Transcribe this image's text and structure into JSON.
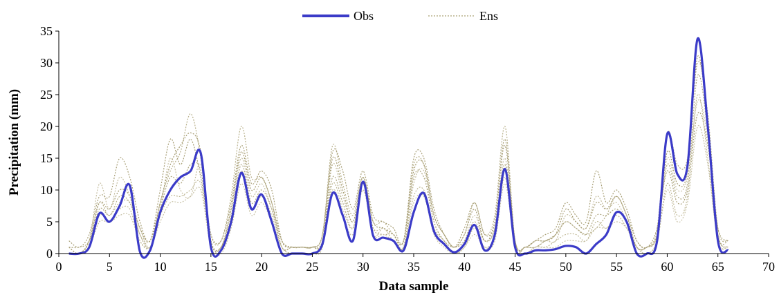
{
  "chart_data": {
    "type": "line",
    "xlabel": "Data sample",
    "ylabel": "Precipitation (mm)",
    "xlim": [
      0,
      70
    ],
    "ylim": [
      0,
      35
    ],
    "xticks": [
      0,
      5,
      10,
      15,
      20,
      25,
      30,
      35,
      40,
      45,
      50,
      55,
      60,
      65,
      70
    ],
    "yticks": [
      0,
      5,
      10,
      15,
      20,
      25,
      30,
      35
    ],
    "grid": false,
    "legend_position": "top-center",
    "colors": {
      "obs": "#3b3bc8",
      "ens": "#b8b08a"
    },
    "legend": [
      {
        "label": "Obs",
        "style": "solid",
        "color": "#3b3bc8"
      },
      {
        "label": "Ens",
        "style": "dotted",
        "color": "#b8b08a"
      }
    ],
    "x": [
      1,
      2,
      3,
      4,
      5,
      6,
      7,
      8,
      9,
      10,
      11,
      12,
      13,
      14,
      15,
      16,
      17,
      18,
      19,
      20,
      21,
      22,
      23,
      24,
      25,
      26,
      27,
      28,
      29,
      30,
      31,
      32,
      33,
      34,
      35,
      36,
      37,
      38,
      39,
      40,
      41,
      42,
      43,
      44,
      45,
      46,
      47,
      48,
      49,
      50,
      51,
      52,
      53,
      54,
      55,
      56,
      57,
      58,
      59,
      60,
      61,
      62,
      63,
      64,
      65,
      66
    ],
    "series": [
      {
        "name": "Obs",
        "values": [
          0,
          0,
          1,
          6.3,
          5,
          7.5,
          10.7,
          0.3,
          0.5,
          6.5,
          10,
          12,
          13,
          15.8,
          1,
          0.5,
          5,
          12.7,
          7,
          9.3,
          5,
          0,
          0,
          0,
          0,
          1.5,
          9.5,
          6,
          2,
          11.3,
          2.8,
          2.5,
          2,
          0.5,
          6.5,
          9.5,
          3.5,
          1.5,
          0.2,
          1.5,
          4.5,
          0.5,
          3,
          13.3,
          1,
          0,
          0.5,
          0.5,
          0.7,
          1.2,
          1,
          0,
          1.5,
          3,
          6.5,
          5,
          0,
          0,
          2,
          18.8,
          12.5,
          13.8,
          33.8,
          20,
          2,
          0.5
        ]
      },
      {
        "name": "",
        "values": [
          0,
          0,
          2,
          8,
          6,
          9,
          8,
          4,
          1,
          8,
          13,
          16,
          22,
          15,
          3,
          2,
          9,
          20,
          12,
          12,
          8,
          1,
          1,
          1,
          1,
          3,
          17,
          11,
          6,
          12,
          5,
          5,
          3,
          2,
          14,
          14,
          6,
          3,
          1,
          3,
          8,
          3,
          6,
          20,
          2,
          1,
          2,
          2,
          3,
          5,
          4,
          3,
          4,
          6,
          9,
          6,
          2,
          1,
          4,
          19,
          14,
          15,
          30,
          22,
          4,
          2
        ]
      },
      {
        "name": "",
        "values": [
          1,
          0,
          2,
          11,
          7,
          12,
          9,
          3,
          2,
          7,
          15,
          10,
          9,
          14,
          2,
          1,
          7,
          15,
          9,
          11,
          7,
          2,
          1,
          1,
          1,
          2,
          14,
          9,
          5,
          10,
          4,
          4,
          3,
          1,
          11,
          13,
          5,
          2,
          1,
          2,
          6,
          2,
          4,
          15,
          1,
          1,
          1,
          2,
          2,
          6,
          5,
          4,
          9,
          7,
          8,
          5,
          1,
          1,
          3,
          15,
          10,
          12,
          24,
          18,
          3,
          1
        ]
      },
      {
        "name": "",
        "values": [
          2,
          1,
          3,
          9,
          9,
          15,
          12,
          5,
          2,
          10,
          18,
          14,
          18,
          12,
          3,
          2,
          8,
          17,
          11,
          13,
          10,
          2,
          1,
          1,
          1,
          3,
          16,
          13,
          7,
          13,
          6,
          5,
          4,
          2,
          15,
          15,
          7,
          3,
          1,
          4,
          8,
          3,
          5,
          18,
          2,
          1,
          2,
          3,
          4,
          8,
          6,
          5,
          13,
          8,
          10,
          7,
          2,
          1,
          4,
          13,
          8,
          10,
          22,
          17,
          4,
          2
        ]
      },
      {
        "name": "",
        "values": [
          0,
          0,
          1,
          5,
          5,
          7,
          7,
          2,
          1,
          6,
          9,
          9,
          10,
          11,
          1,
          1,
          5,
          13,
          7,
          9,
          6,
          1,
          0,
          0,
          0,
          1,
          11,
          7,
          4,
          11,
          3,
          4,
          2,
          1,
          9,
          10,
          4,
          2,
          0,
          1,
          4,
          1,
          3,
          12,
          1,
          0,
          1,
          1,
          2,
          3,
          3,
          2,
          5,
          4,
          6,
          4,
          1,
          0,
          2,
          11,
          6,
          9,
          25,
          15,
          2,
          1
        ]
      },
      {
        "name": "",
        "values": [
          1,
          1,
          2,
          7,
          6,
          8,
          8,
          3,
          1,
          7,
          12,
          11,
          14,
          13,
          2,
          1,
          6,
          14,
          8,
          10,
          7,
          1,
          1,
          1,
          1,
          2,
          12,
          8,
          4,
          11,
          4,
          3,
          3,
          1,
          12,
          12,
          5,
          2,
          1,
          2,
          5,
          2,
          4,
          14,
          1,
          1,
          1,
          2,
          3,
          5,
          4,
          3,
          6,
          6,
          7,
          5,
          1,
          1,
          3,
          14,
          9,
          11,
          28,
          19,
          3,
          1
        ]
      },
      {
        "name": "",
        "values": [
          0,
          0,
          1,
          6,
          5,
          6,
          6,
          2,
          1,
          5,
          8,
          8,
          9,
          10,
          1,
          0,
          4,
          11,
          6,
          8,
          5,
          1,
          0,
          0,
          0,
          1,
          10,
          6,
          3,
          10,
          3,
          3,
          2,
          1,
          8,
          9,
          3,
          1,
          0,
          1,
          3,
          1,
          2,
          11,
          1,
          0,
          1,
          1,
          1,
          2,
          2,
          2,
          4,
          4,
          5,
          4,
          1,
          0,
          2,
          10,
          5,
          8,
          20,
          14,
          2,
          1
        ]
      },
      {
        "name": "",
        "values": [
          1,
          0,
          2,
          8,
          7,
          10,
          9,
          4,
          2,
          8,
          14,
          17,
          19,
          16,
          2,
          1,
          7,
          16,
          10,
          12,
          8,
          2,
          1,
          1,
          1,
          2,
          15,
          10,
          5,
          12,
          5,
          4,
          3,
          2,
          13,
          14,
          6,
          3,
          1,
          3,
          7,
          2,
          5,
          17,
          2,
          1,
          2,
          2,
          3,
          7,
          5,
          4,
          8,
          7,
          9,
          6,
          1,
          1,
          3,
          16,
          11,
          13,
          31,
          20,
          3,
          2
        ]
      }
    ]
  }
}
